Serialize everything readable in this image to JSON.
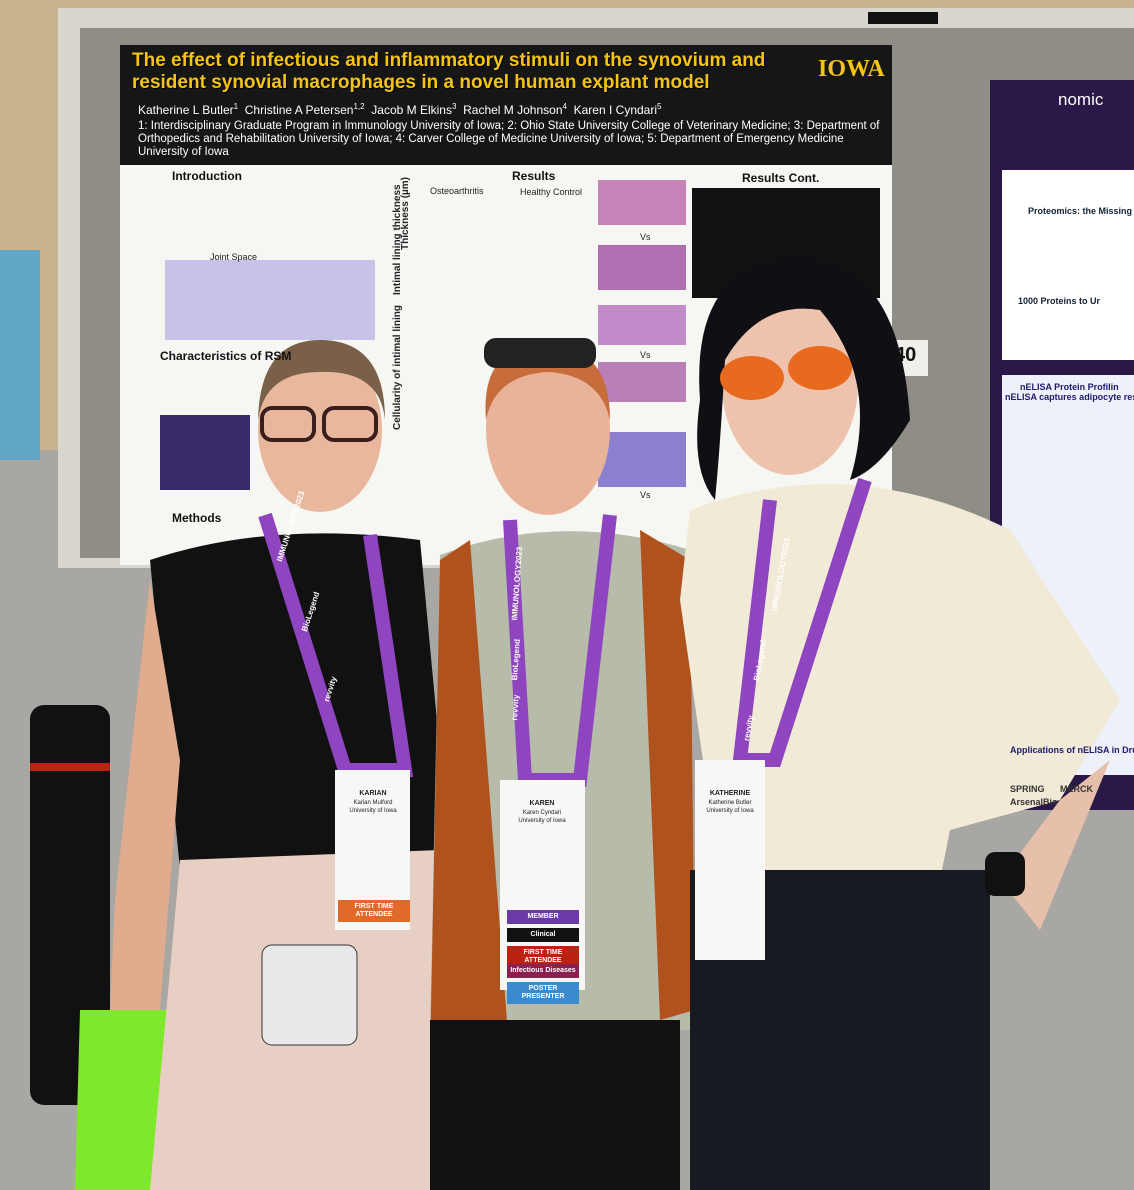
{
  "poster": {
    "title": "The effect of infectious and inflammatory stimuli on the synovium and resident synovial macrophages in a novel human explant model",
    "logo": "IOWA",
    "authors": [
      {
        "name": "Katherine L Butler",
        "sup": "1"
      },
      {
        "name": "Christine A Petersen",
        "sup": "1,2"
      },
      {
        "name": "Jacob M Elkins",
        "sup": "3"
      },
      {
        "name": "Rachel M Johnson",
        "sup": "4"
      },
      {
        "name": "Karen I Cyndari",
        "sup": "5"
      }
    ],
    "affiliations": "1: Interdisciplinary Graduate Program in Immunology University of Iowa; 2: Ohio State University College of Veterinary Medicine; 3: Department of Orthopedics and Rehabilitation University of Iowa; 4: Carver College of Medicine University of Iowa; 5: Department of Emergency Medicine University of Iowa",
    "sections": [
      "Introduction",
      "Results",
      "Results Cont.",
      "Characteristics of RSM",
      "Methods"
    ],
    "panel_labels": [
      "Osteoarthritis",
      "Healthy Control",
      "Intimal lining thickness",
      "Cellularity of intimal lining",
      "Thickness (µm)",
      "Joint Space",
      "Vs",
      "Vs",
      "Vs"
    ],
    "board_number": "40"
  },
  "side_poster": {
    "brand": "nomic",
    "headings": [
      "Proteomics: the Missing -",
      "1000 Proteins to Ur",
      "nELISA Protein Profilin",
      "nELISA captures adipocyte responses t",
      "Applications of nELISA in Drug"
    ],
    "sponsors": [
      "SPRING",
      "MERCK",
      "ArsenalBio"
    ]
  },
  "lanyards": [
    "revvity",
    "BioLegend",
    "IMMUNOLOGY2023"
  ],
  "badges": [
    {
      "first": "KARIAN",
      "full": "Karian Mulford",
      "org": "University of Iowa",
      "ribbons": [
        "FIRST TIME ATTENDEE"
      ]
    },
    {
      "first": "KAREN",
      "full": "Karen Cyndari",
      "org": "University of Iowa",
      "ribbons": [
        "MEMBER",
        "Clinical",
        "FIRST TIME ATTENDEE",
        "Infectious Diseases",
        "POSTER PRESENTER"
      ]
    },
    {
      "first": "KATHERINE",
      "full": "Katherine Butler",
      "org": "University of Iowa",
      "ribbons": []
    }
  ]
}
